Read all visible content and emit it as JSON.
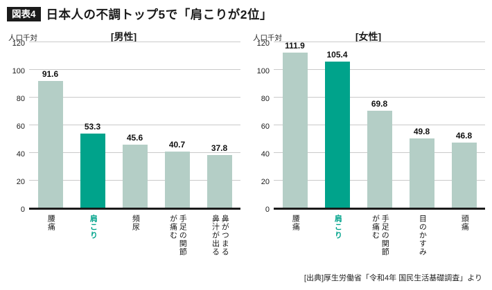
{
  "header": {
    "badge": "図表4",
    "title": "日本人の不調トップ5で「肩こりが2位」"
  },
  "footer": {
    "source": "[出典]厚生労働省「令和4年 国民生活基礎調査」より"
  },
  "colors": {
    "bar": "#b4cec6",
    "bar_highlight": "#00a38b",
    "highlight_text": "#00a38b",
    "axis": "#1a1a1a",
    "grid": "#c9c9c9"
  },
  "chart_data": [
    {
      "type": "bar",
      "title": "[男性]",
      "ylabel": "人口千対",
      "ylim": [
        0,
        120
      ],
      "yticks": [
        0,
        20,
        40,
        60,
        80,
        100,
        120
      ],
      "grid": true,
      "legend": false,
      "categories": [
        "腰痛",
        "肩こり",
        "頻尿",
        "手足の関節が痛む",
        "鼻がつまる・鼻汁が出る"
      ],
      "category_lines": [
        [
          "腰痛"
        ],
        [
          "肩こり"
        ],
        [
          "頻尿"
        ],
        [
          "手足の関節",
          "が痛む"
        ],
        [
          "鼻がつまる",
          "鼻汁が出る"
        ]
      ],
      "values": [
        91.6,
        53.3,
        45.6,
        40.7,
        37.8
      ],
      "highlight_index": 1,
      "highlight_category": "肩こり"
    },
    {
      "type": "bar",
      "title": "[女性]",
      "ylabel": "人口千対",
      "ylim": [
        0,
        120
      ],
      "yticks": [
        0,
        20,
        40,
        60,
        80,
        100,
        120
      ],
      "grid": true,
      "legend": false,
      "categories": [
        "腰痛",
        "肩こり",
        "手足の関節が痛む",
        "目のかすみ",
        "頭痛"
      ],
      "category_lines": [
        [
          "腰痛"
        ],
        [
          "肩こり"
        ],
        [
          "手足の関節",
          "が痛む"
        ],
        [
          "目のかすみ"
        ],
        [
          "頭痛"
        ]
      ],
      "values": [
        111.9,
        105.4,
        69.8,
        49.8,
        46.8
      ],
      "highlight_index": 1,
      "highlight_category": "肩こり"
    }
  ]
}
